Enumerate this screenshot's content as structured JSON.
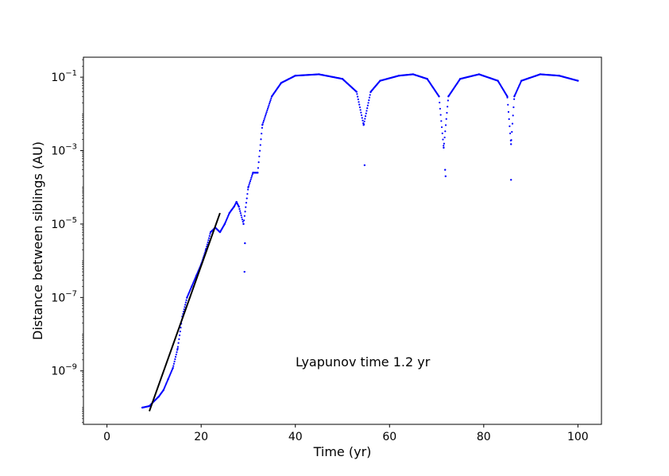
{
  "chart_data": {
    "type": "scatter",
    "xlabel": "Time  (yr)",
    "ylabel": "Distance between siblings (AU)",
    "xlim": [
      -5,
      105
    ],
    "ylim": [
      3.5e-11,
      0.35
    ],
    "yscale": "log",
    "grid": false,
    "x_ticks": [
      0,
      20,
      40,
      60,
      80,
      100
    ],
    "y_ticks": [
      {
        "value": 1e-09,
        "exp": "−9"
      },
      {
        "value": 1e-07,
        "exp": "−7"
      },
      {
        "value": 1e-05,
        "exp": "−5"
      },
      {
        "value": 0.001,
        "exp": "−3"
      },
      {
        "value": 0.1,
        "exp": "−1"
      }
    ],
    "annotation": "Lyapunov time 1.2 yr",
    "colors": {
      "series": "#0000ff",
      "fit": "#000000"
    },
    "series": [
      {
        "style": "dots",
        "x": [
          7.5,
          9,
          10,
          11,
          12,
          13,
          14,
          15,
          16,
          17,
          18,
          19,
          20,
          21,
          22,
          23,
          24,
          25,
          26,
          27,
          27.5,
          28,
          29,
          30,
          31,
          32,
          33,
          35,
          37,
          40,
          45,
          50,
          53,
          54.5,
          56,
          58,
          62,
          65,
          68,
          70.5,
          71.5,
          72.5,
          75,
          79,
          83,
          85,
          85.8,
          86.5,
          88,
          92,
          96,
          100
        ],
        "y": [
          1e-10,
          1.1e-10,
          1.5e-10,
          2e-10,
          3e-10,
          6e-10,
          1.2e-09,
          4e-09,
          3e-08,
          1e-07,
          2e-07,
          4e-07,
          8e-07,
          2e-06,
          6e-06,
          8e-06,
          6e-06,
          1e-05,
          2e-05,
          3e-05,
          4e-05,
          3e-05,
          1e-05,
          0.0001,
          0.00025,
          0.00025,
          0.005,
          0.03,
          0.07,
          0.11,
          0.12,
          0.09,
          0.04,
          0.005,
          0.04,
          0.08,
          0.11,
          0.12,
          0.09,
          0.03,
          0.0012,
          0.03,
          0.09,
          0.12,
          0.08,
          0.03,
          0.0015,
          0.03,
          0.08,
          0.12,
          0.11,
          0.08
        ]
      },
      {
        "style": "dips",
        "x": [
          29.2,
          29.3,
          54.7,
          71.8,
          71.9,
          85.8
        ],
        "y": [
          5e-07,
          3e-06,
          0.0004,
          0.0003,
          0.0002,
          0.00016
        ]
      },
      {
        "style": "fit-line",
        "x": [
          9,
          24
        ],
        "y": [
          8e-11,
          2e-05
        ]
      }
    ]
  }
}
